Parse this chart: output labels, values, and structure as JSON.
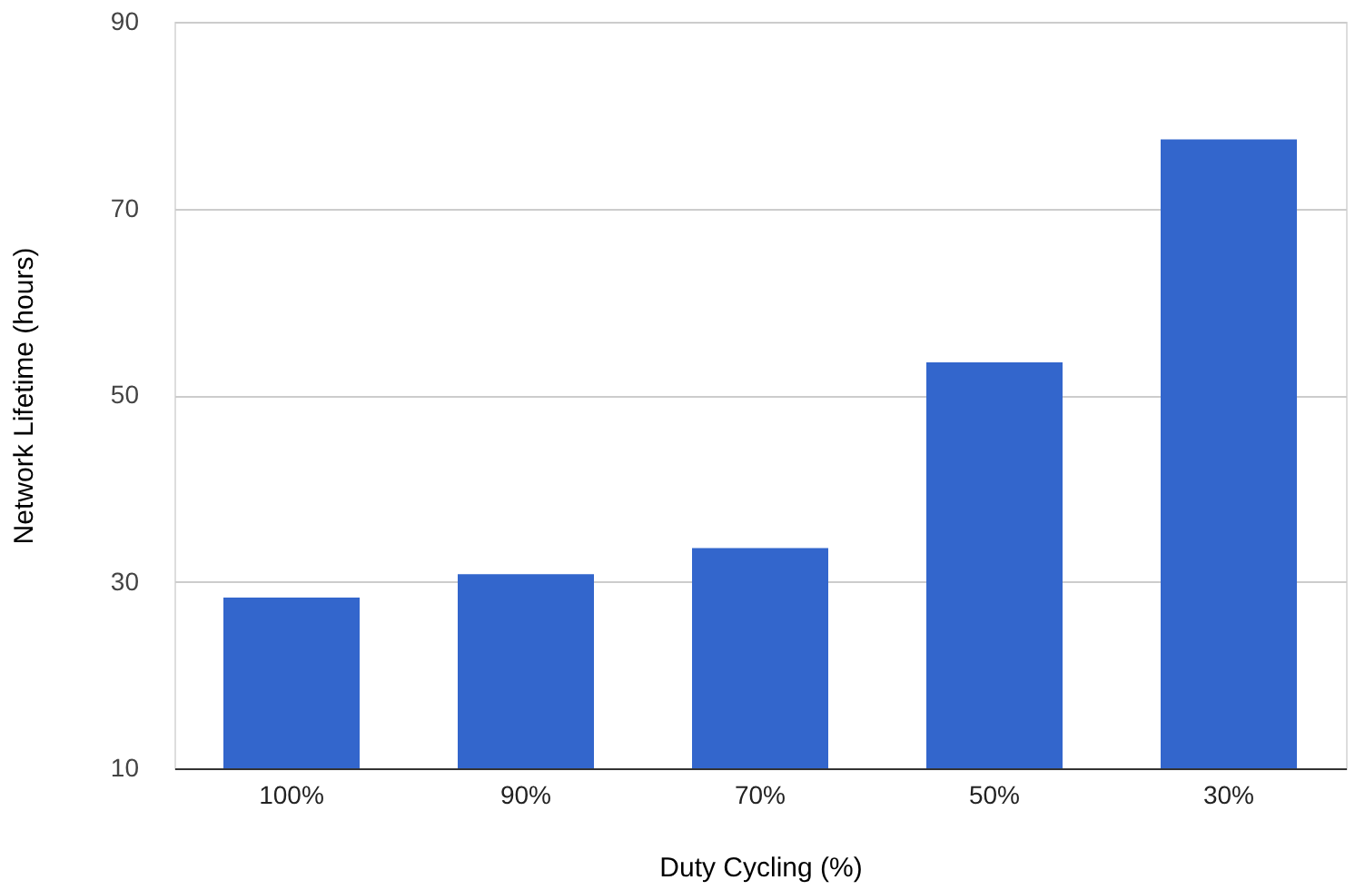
{
  "chart_data": {
    "type": "bar",
    "xlabel": "Duty Cycling (%)",
    "ylabel": "Network Lifetime (hours)",
    "categories": [
      "100%",
      "90%",
      "70%",
      "50%",
      "30%"
    ],
    "values": [
      28.3,
      30.8,
      33.6,
      53.5,
      77.4
    ],
    "color": "#3366cc",
    "ylim": [
      10,
      90
    ],
    "yticks": [
      10,
      30,
      50,
      70,
      90
    ],
    "grid": "y"
  }
}
